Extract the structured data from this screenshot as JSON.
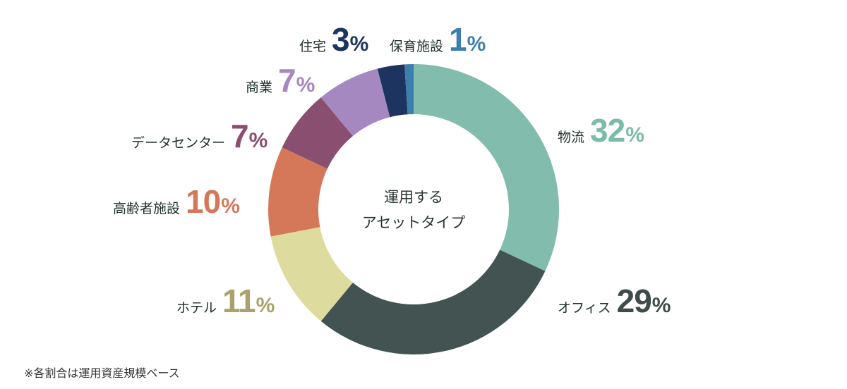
{
  "chart_data": {
    "type": "pie",
    "donut": true,
    "center_label": [
      "運用する",
      "アセットタイプ"
    ],
    "unit": "%",
    "start_angle_deg": 0,
    "direction": "clockwise",
    "slices": [
      {
        "label": "物流",
        "value": 32,
        "color": "#82bcad"
      },
      {
        "label": "オフィス",
        "value": 29,
        "color": "#435352"
      },
      {
        "label": "ホテル",
        "value": 11,
        "color": "#dedb9e"
      },
      {
        "label": "高齢者施設",
        "value": 10,
        "color": "#d5785a"
      },
      {
        "label": "データセンター",
        "value": 7,
        "color": "#8a4f70"
      },
      {
        "label": "商業",
        "value": 7,
        "color": "#a588c0"
      },
      {
        "label": "住宅",
        "value": 3,
        "color": "#1d3461"
      },
      {
        "label": "保育施設",
        "value": 1,
        "color": "#3c7fae"
      }
    ],
    "label_value_colors": [
      "#7bbba9",
      "#3f4b49",
      "#a9a36b",
      "#d5785a",
      "#8a4f70",
      "#a588c0",
      "#1d3461",
      "#3c7fae"
    ]
  },
  "footnote": "※各割合は運用資産規模ベース"
}
